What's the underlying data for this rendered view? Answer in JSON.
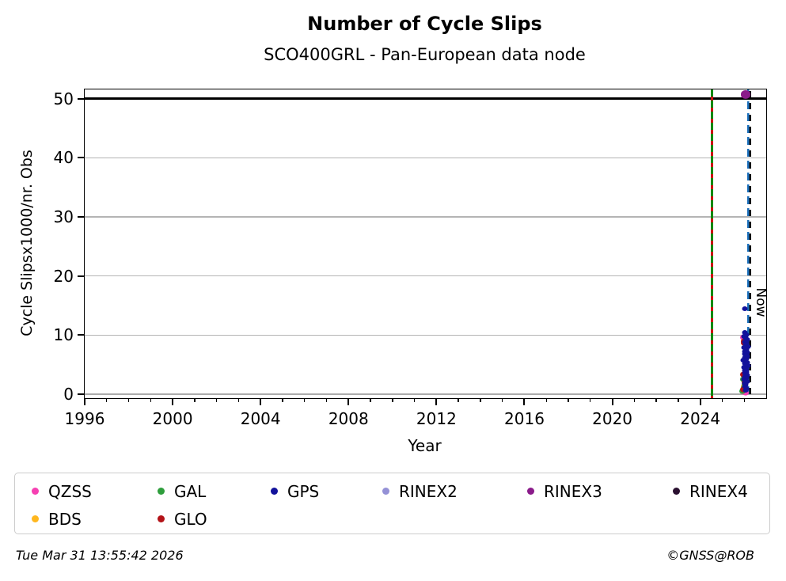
{
  "header": {
    "title": "Number of Cycle Slips",
    "subtitle": "SCO400GRL - Pan-European data node"
  },
  "footer": {
    "timestamp": "Tue Mar 31 13:55:42 2026",
    "credit": "©GNSS@ROB"
  },
  "chart_data": {
    "type": "scatter",
    "title": "Number of Cycle Slips",
    "subtitle": "SCO400GRL - Pan-European data node",
    "xlabel": "Year",
    "ylabel": "Cycle Slipsx1000/nr. Obs",
    "xlim": [
      1996,
      2027
    ],
    "ylim": [
      -0.65,
      51.55
    ],
    "x_major_ticks": [
      1996,
      2000,
      2004,
      2008,
      2012,
      2016,
      2020,
      2024
    ],
    "x_minor_step": 1,
    "y_ticks": [
      0,
      10,
      20,
      30,
      40,
      50
    ],
    "grid": "horizontal-only",
    "grid_color": "#b4b4b4",
    "hline": {
      "y": 50,
      "color": "#000000"
    },
    "vlines": [
      {
        "x": 2024.55,
        "style": "campaign",
        "colors": [
          "#0a8a0a",
          "#cc1010"
        ],
        "label": ""
      },
      {
        "x": 2026.24,
        "style": "now",
        "colors": [
          "#1b6fbb",
          "#0a0a0a"
        ],
        "label": "Now"
      }
    ],
    "legend_position": "bottom",
    "series": [
      {
        "name": "QZSS",
        "color": "#f640b2",
        "size": 8,
        "points": [
          [
            2025.96,
            9.6
          ],
          [
            2025.98,
            0.35
          ],
          [
            2026.06,
            0.3
          ]
        ]
      },
      {
        "name": "GAL",
        "color": "#2e9e3c",
        "size": 8,
        "points": [
          [
            2025.94,
            2.5
          ],
          [
            2026.04,
            1.7
          ],
          [
            2026.0,
            1.1
          ],
          [
            2025.92,
            0.55
          ]
        ]
      },
      {
        "name": "GPS",
        "color": "#12129b",
        "size": 7,
        "points": [
          [
            2026.02,
            14.5
          ],
          [
            2026.04,
            10.4
          ],
          [
            2026.1,
            10.1
          ],
          [
            2025.99,
            9.8
          ],
          [
            2026.07,
            9.5
          ],
          [
            2026.14,
            9.2
          ],
          [
            2026.02,
            8.9
          ],
          [
            2026.11,
            8.7
          ],
          [
            2026.05,
            8.4
          ],
          [
            2026.17,
            8.1
          ],
          [
            2025.98,
            7.9
          ],
          [
            2026.09,
            7.6
          ],
          [
            2026.04,
            7.3
          ],
          [
            2026.13,
            7.1
          ],
          [
            2026.01,
            6.9
          ],
          [
            2026.07,
            6.6
          ],
          [
            2026.15,
            6.4
          ],
          [
            2026.03,
            6.2
          ],
          [
            2026.1,
            6.0
          ],
          [
            2025.97,
            5.8
          ],
          [
            2026.06,
            5.6
          ],
          [
            2026.12,
            5.4
          ],
          [
            2026.02,
            5.2
          ],
          [
            2026.08,
            5.0
          ],
          [
            2026.16,
            4.8
          ],
          [
            2026.0,
            4.6
          ],
          [
            2026.05,
            4.4
          ],
          [
            2026.11,
            4.2
          ],
          [
            2026.04,
            4.0
          ],
          [
            2026.09,
            3.8
          ],
          [
            2026.01,
            3.6
          ],
          [
            2026.07,
            3.4
          ],
          [
            2026.14,
            3.2
          ],
          [
            2026.03,
            3.0
          ],
          [
            2026.1,
            2.8
          ],
          [
            2025.99,
            2.6
          ],
          [
            2026.06,
            2.3
          ],
          [
            2026.12,
            2.1
          ],
          [
            2026.04,
            1.9
          ],
          [
            2026.08,
            1.6
          ],
          [
            2026.02,
            1.3
          ],
          [
            2026.09,
            1.0
          ],
          [
            2026.05,
            0.7
          ]
        ]
      },
      {
        "name": "RINEX2",
        "color": "#9491d6",
        "size": 8,
        "points": []
      },
      {
        "name": "RINEX3",
        "color": "#8a1b8a",
        "size": 12,
        "points": [
          [
            2026.05,
            50.7
          ]
        ]
      },
      {
        "name": "RINEX4",
        "color": "#2a1030",
        "size": 8,
        "points": []
      },
      {
        "name": "BDS",
        "color": "#ffb71e",
        "size": 8,
        "points": [
          [
            2026.0,
            1.35
          ],
          [
            2025.97,
            0.6
          ]
        ]
      },
      {
        "name": "GLO",
        "color": "#b31217",
        "size": 8,
        "points": [
          [
            2026.0,
            9.0
          ],
          [
            2025.98,
            8.7
          ],
          [
            2025.96,
            3.3
          ],
          [
            2026.04,
            2.0
          ],
          [
            2025.95,
            0.85
          ]
        ]
      }
    ],
    "draw_order": [
      "QZSS",
      "BDS",
      "GAL",
      "RINEX2",
      "GLO",
      "GPS",
      "RINEX3",
      "RINEX4"
    ]
  }
}
